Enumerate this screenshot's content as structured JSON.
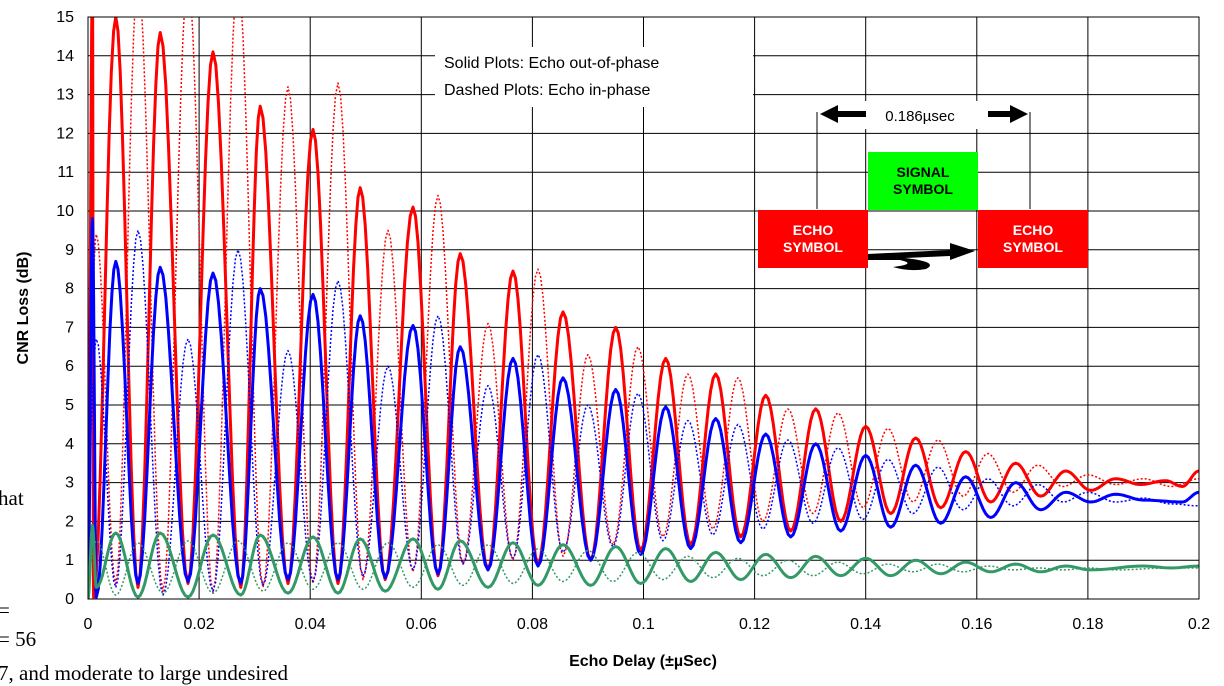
{
  "background_text": {
    "line1": "hat",
    "line2": "=",
    "line3": "= 56",
    "line4": "7, and moderate to large undesired"
  },
  "legend": {
    "solid": "Solid Plots: Echo out-of-phase",
    "dashed": "Dashed Plots: Echo in-phase"
  },
  "inset": {
    "delay_label": "0.186µsec",
    "signal_line1": "SIGNAL",
    "signal_line2": "SYMBOL",
    "echo_left_line1": "ECHO",
    "echo_left_line2": "SYMBOL",
    "echo_right_line1": "ECHO",
    "echo_right_line2": "SYMBOL",
    "colors": {
      "echo": "#ff0000",
      "signal": "#00ff00",
      "arrow": "#000000"
    }
  },
  "chart_data": {
    "type": "line",
    "xlabel": "Echo Delay (±µSec)",
    "ylabel": "CNR Loss (dB)",
    "xlim": [
      0,
      0.2
    ],
    "ylim": [
      0,
      15
    ],
    "x_ticks": [
      "0",
      "0.02",
      "0.04",
      "0.06",
      "0.08",
      "0.1",
      "0.12",
      "0.14",
      "0.16",
      "0.18",
      "0.2"
    ],
    "y_ticks": [
      "0",
      "1",
      "2",
      "3",
      "4",
      "5",
      "6",
      "7",
      "8",
      "9",
      "10",
      "11",
      "12",
      "13",
      "14",
      "15"
    ],
    "grid": true,
    "series": [
      {
        "color": "#ff0000",
        "style": "solid",
        "width": 3,
        "base": [
          [
            0,
            0.3
          ],
          [
            0.2,
            0.3
          ]
        ],
        "peaks": [
          [
            0.0008,
            16.0
          ],
          [
            0.005,
            15.0
          ],
          [
            0.013,
            14.6
          ],
          [
            0.0225,
            14.1
          ],
          [
            0.031,
            12.7
          ],
          [
            0.0405,
            12.1
          ],
          [
            0.049,
            10.6
          ],
          [
            0.0585,
            10.1
          ],
          [
            0.067,
            8.9
          ],
          [
            0.0765,
            8.45
          ],
          [
            0.0855,
            7.4
          ],
          [
            0.095,
            7.0
          ],
          [
            0.104,
            6.2
          ],
          [
            0.113,
            5.8
          ],
          [
            0.122,
            5.25
          ],
          [
            0.131,
            4.9
          ],
          [
            0.14,
            4.45
          ],
          [
            0.149,
            4.15
          ],
          [
            0.158,
            3.8
          ],
          [
            0.167,
            3.5
          ],
          [
            0.176,
            3.3
          ],
          [
            0.185,
            3.1
          ],
          [
            0.194,
            3.05
          ],
          [
            0.2,
            3.3
          ]
        ],
        "troughs": [
          [
            0.001,
            0.05
          ],
          [
            0.009,
            0.3
          ],
          [
            0.018,
            0.4
          ],
          [
            0.0275,
            0.3
          ],
          [
            0.036,
            0.4
          ],
          [
            0.045,
            0.4
          ],
          [
            0.0535,
            0.5
          ],
          [
            0.063,
            0.6
          ],
          [
            0.072,
            0.75
          ],
          [
            0.081,
            0.9
          ],
          [
            0.0905,
            1.0
          ],
          [
            0.0995,
            1.25
          ],
          [
            0.1085,
            1.4
          ],
          [
            0.1175,
            1.6
          ],
          [
            0.1265,
            1.75
          ],
          [
            0.1355,
            2.0
          ],
          [
            0.1445,
            2.2
          ],
          [
            0.1535,
            2.35
          ],
          [
            0.1625,
            2.5
          ],
          [
            0.1715,
            2.65
          ],
          [
            0.1805,
            2.8
          ],
          [
            0.1895,
            2.95
          ],
          [
            0.197,
            2.9
          ]
        ]
      },
      {
        "color": "#ff0000",
        "style": "dashed",
        "width": 1.5,
        "peaks": [
          [
            0.0015,
            9.4
          ],
          [
            0.009,
            16.0
          ],
          [
            0.018,
            16.0
          ],
          [
            0.027,
            16.0
          ],
          [
            0.036,
            13.2
          ],
          [
            0.045,
            13.3
          ],
          [
            0.054,
            9.5
          ],
          [
            0.063,
            10.4
          ],
          [
            0.072,
            7.1
          ],
          [
            0.081,
            8.5
          ],
          [
            0.09,
            6.3
          ],
          [
            0.099,
            6.5
          ],
          [
            0.108,
            5.8
          ],
          [
            0.117,
            5.7
          ],
          [
            0.126,
            4.9
          ],
          [
            0.135,
            4.8
          ],
          [
            0.144,
            4.4
          ],
          [
            0.153,
            4.1
          ],
          [
            0.162,
            3.75
          ],
          [
            0.171,
            3.45
          ],
          [
            0.18,
            3.2
          ],
          [
            0.19,
            3.1
          ],
          [
            0.2,
            3.1
          ]
        ],
        "troughs": [
          [
            0.005,
            0.4
          ],
          [
            0.0135,
            0.2
          ],
          [
            0.0225,
            0.15
          ],
          [
            0.0315,
            0.3
          ],
          [
            0.0405,
            0.4
          ],
          [
            0.0495,
            0.5
          ],
          [
            0.0585,
            0.7
          ],
          [
            0.0675,
            0.9
          ],
          [
            0.0765,
            1.0
          ],
          [
            0.0855,
            1.1
          ],
          [
            0.0945,
            1.4
          ],
          [
            0.1035,
            1.6
          ],
          [
            0.1125,
            1.8
          ],
          [
            0.1215,
            2.0
          ],
          [
            0.1305,
            2.2
          ],
          [
            0.1395,
            2.35
          ],
          [
            0.1485,
            2.5
          ],
          [
            0.1575,
            2.65
          ],
          [
            0.1665,
            2.75
          ],
          [
            0.1755,
            2.9
          ],
          [
            0.185,
            2.95
          ],
          [
            0.195,
            2.9
          ]
        ]
      },
      {
        "color": "#0000ff",
        "style": "solid",
        "width": 3,
        "peaks": [
          [
            0.0008,
            9.8
          ],
          [
            0.005,
            8.7
          ],
          [
            0.013,
            8.55
          ],
          [
            0.0225,
            8.4
          ],
          [
            0.031,
            8.0
          ],
          [
            0.0405,
            7.85
          ],
          [
            0.049,
            7.3
          ],
          [
            0.0585,
            7.05
          ],
          [
            0.067,
            6.5
          ],
          [
            0.0765,
            6.2
          ],
          [
            0.0855,
            5.7
          ],
          [
            0.095,
            5.4
          ],
          [
            0.104,
            4.95
          ],
          [
            0.113,
            4.65
          ],
          [
            0.122,
            4.25
          ],
          [
            0.131,
            4.0
          ],
          [
            0.14,
            3.7
          ],
          [
            0.149,
            3.45
          ],
          [
            0.158,
            3.15
          ],
          [
            0.167,
            3.0
          ],
          [
            0.176,
            2.75
          ],
          [
            0.185,
            2.7
          ],
          [
            0.2,
            2.75
          ]
        ],
        "troughs": [
          [
            0.0015,
            0.05
          ],
          [
            0.009,
            0.4
          ],
          [
            0.018,
            0.45
          ],
          [
            0.0275,
            0.4
          ],
          [
            0.036,
            0.5
          ],
          [
            0.045,
            0.5
          ],
          [
            0.0535,
            0.55
          ],
          [
            0.063,
            0.65
          ],
          [
            0.072,
            0.75
          ],
          [
            0.081,
            0.85
          ],
          [
            0.0905,
            1.0
          ],
          [
            0.0995,
            1.15
          ],
          [
            0.1085,
            1.3
          ],
          [
            0.1175,
            1.45
          ],
          [
            0.1265,
            1.6
          ],
          [
            0.1355,
            1.75
          ],
          [
            0.1445,
            1.85
          ],
          [
            0.1535,
            1.95
          ],
          [
            0.1625,
            2.1
          ],
          [
            0.1715,
            2.3
          ],
          [
            0.1805,
            2.5
          ],
          [
            0.19,
            2.55
          ],
          [
            0.197,
            2.5
          ]
        ]
      },
      {
        "color": "#0000ff",
        "style": "dashed",
        "width": 1.5,
        "peaks": [
          [
            0.0015,
            6.7
          ],
          [
            0.009,
            9.5
          ],
          [
            0.018,
            6.7
          ],
          [
            0.027,
            9.0
          ],
          [
            0.036,
            6.4
          ],
          [
            0.045,
            8.2
          ],
          [
            0.054,
            6.0
          ],
          [
            0.063,
            7.3
          ],
          [
            0.072,
            5.5
          ],
          [
            0.081,
            6.3
          ],
          [
            0.09,
            5.0
          ],
          [
            0.099,
            5.3
          ],
          [
            0.108,
            4.6
          ],
          [
            0.117,
            4.5
          ],
          [
            0.126,
            4.1
          ],
          [
            0.135,
            3.9
          ],
          [
            0.144,
            3.6
          ],
          [
            0.153,
            3.4
          ],
          [
            0.162,
            3.1
          ],
          [
            0.171,
            2.95
          ],
          [
            0.18,
            2.75
          ],
          [
            0.19,
            2.6
          ],
          [
            0.2,
            2.4
          ]
        ],
        "troughs": [
          [
            0.005,
            0.3
          ],
          [
            0.0135,
            0.1
          ],
          [
            0.0225,
            0.2
          ],
          [
            0.0315,
            0.35
          ],
          [
            0.0405,
            0.45
          ],
          [
            0.0495,
            0.6
          ],
          [
            0.0585,
            0.75
          ],
          [
            0.0675,
            0.9
          ],
          [
            0.0765,
            1.05
          ],
          [
            0.0855,
            1.2
          ],
          [
            0.0945,
            1.35
          ],
          [
            0.1035,
            1.5
          ],
          [
            0.1125,
            1.65
          ],
          [
            0.1215,
            1.8
          ],
          [
            0.1305,
            1.95
          ],
          [
            0.1395,
            2.05
          ],
          [
            0.1485,
            2.2
          ],
          [
            0.1575,
            2.3
          ],
          [
            0.1665,
            2.4
          ],
          [
            0.1755,
            2.5
          ],
          [
            0.185,
            2.5
          ],
          [
            0.195,
            2.45
          ]
        ]
      },
      {
        "color": "#339966",
        "style": "solid",
        "width": 3,
        "peaks": [
          [
            0.0008,
            1.9
          ],
          [
            0.005,
            1.7
          ],
          [
            0.013,
            1.7
          ],
          [
            0.0225,
            1.65
          ],
          [
            0.031,
            1.65
          ],
          [
            0.0405,
            1.6
          ],
          [
            0.049,
            1.55
          ],
          [
            0.0585,
            1.55
          ],
          [
            0.067,
            1.5
          ],
          [
            0.0765,
            1.45
          ],
          [
            0.0855,
            1.4
          ],
          [
            0.095,
            1.35
          ],
          [
            0.104,
            1.3
          ],
          [
            0.113,
            1.2
          ],
          [
            0.122,
            1.15
          ],
          [
            0.131,
            1.1
          ],
          [
            0.14,
            1.05
          ],
          [
            0.149,
            1.0
          ],
          [
            0.158,
            0.95
          ],
          [
            0.167,
            0.9
          ],
          [
            0.176,
            0.85
          ],
          [
            0.19,
            0.85
          ],
          [
            0.2,
            0.85
          ]
        ],
        "troughs": [
          [
            0.0015,
            0.3
          ],
          [
            0.009,
            0.05
          ],
          [
            0.018,
            0.05
          ],
          [
            0.0275,
            0.1
          ],
          [
            0.036,
            0.15
          ],
          [
            0.045,
            0.15
          ],
          [
            0.0535,
            0.2
          ],
          [
            0.063,
            0.25
          ],
          [
            0.072,
            0.3
          ],
          [
            0.081,
            0.35
          ],
          [
            0.0905,
            0.35
          ],
          [
            0.0995,
            0.4
          ],
          [
            0.1085,
            0.45
          ],
          [
            0.1175,
            0.5
          ],
          [
            0.1265,
            0.55
          ],
          [
            0.1355,
            0.6
          ],
          [
            0.1445,
            0.6
          ],
          [
            0.1535,
            0.65
          ],
          [
            0.1625,
            0.7
          ],
          [
            0.1715,
            0.7
          ],
          [
            0.1805,
            0.75
          ],
          [
            0.195,
            0.8
          ]
        ]
      },
      {
        "color": "#339966",
        "style": "dashed",
        "width": 1.5,
        "peaks": [
          [
            0.0015,
            1.5
          ],
          [
            0.009,
            1.45
          ],
          [
            0.018,
            1.5
          ],
          [
            0.027,
            1.5
          ],
          [
            0.036,
            1.45
          ],
          [
            0.045,
            1.45
          ],
          [
            0.054,
            1.45
          ],
          [
            0.063,
            1.4
          ],
          [
            0.072,
            1.4
          ],
          [
            0.081,
            1.3
          ],
          [
            0.09,
            1.25
          ],
          [
            0.099,
            1.2
          ],
          [
            0.108,
            1.1
          ],
          [
            0.117,
            1.05
          ],
          [
            0.126,
            1.0
          ],
          [
            0.135,
            0.95
          ],
          [
            0.144,
            0.9
          ],
          [
            0.153,
            0.9
          ],
          [
            0.162,
            0.85
          ],
          [
            0.171,
            0.8
          ],
          [
            0.18,
            0.8
          ],
          [
            0.2,
            0.8
          ]
        ],
        "troughs": [
          [
            0.005,
            0.1
          ],
          [
            0.0135,
            0.15
          ],
          [
            0.0225,
            0.15
          ],
          [
            0.0315,
            0.2
          ],
          [
            0.0405,
            0.25
          ],
          [
            0.0495,
            0.25
          ],
          [
            0.0585,
            0.3
          ],
          [
            0.0675,
            0.35
          ],
          [
            0.0765,
            0.4
          ],
          [
            0.0855,
            0.45
          ],
          [
            0.0945,
            0.45
          ],
          [
            0.1035,
            0.5
          ],
          [
            0.1125,
            0.55
          ],
          [
            0.1215,
            0.6
          ],
          [
            0.1305,
            0.6
          ],
          [
            0.1395,
            0.65
          ],
          [
            0.1485,
            0.7
          ],
          [
            0.1575,
            0.7
          ],
          [
            0.1665,
            0.75
          ],
          [
            0.1755,
            0.75
          ],
          [
            0.185,
            0.75
          ],
          [
            0.195,
            0.8
          ]
        ]
      }
    ]
  }
}
